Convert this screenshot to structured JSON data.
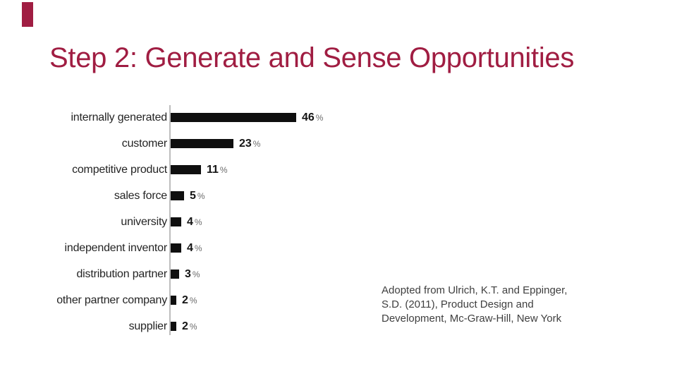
{
  "slide": {
    "title": "Step 2: Generate and Sense Opportunities",
    "accent_color": "#a01d42",
    "background_color": "#ffffff"
  },
  "chart_data": {
    "type": "bar",
    "orientation": "horizontal",
    "title": "",
    "xlabel": "",
    "ylabel": "",
    "categories": [
      "internally generated",
      "customer",
      "competitive product",
      "sales force",
      "university",
      "independent inventor",
      "distribution partner",
      "other partner company",
      "supplier"
    ],
    "values": [
      46,
      23,
      11,
      5,
      4,
      4,
      3,
      2,
      2
    ],
    "value_labels": [
      "46",
      "23",
      "11",
      "5",
      "4",
      "4",
      "3",
      "2",
      "2"
    ],
    "unit": "%",
    "xlim": [
      0,
      50
    ],
    "grid": false,
    "legend": false,
    "bar_color": "#0f0f0f",
    "axis_color": "#bdbdbd",
    "value_label_position": "right-of-bar"
  },
  "citation": {
    "lines": [
      "Adopted from Ulrich, K.T. and Eppinger,",
      "S.D. (2011), Product Design and",
      "Development, Mc-Graw-Hill, New York"
    ]
  }
}
